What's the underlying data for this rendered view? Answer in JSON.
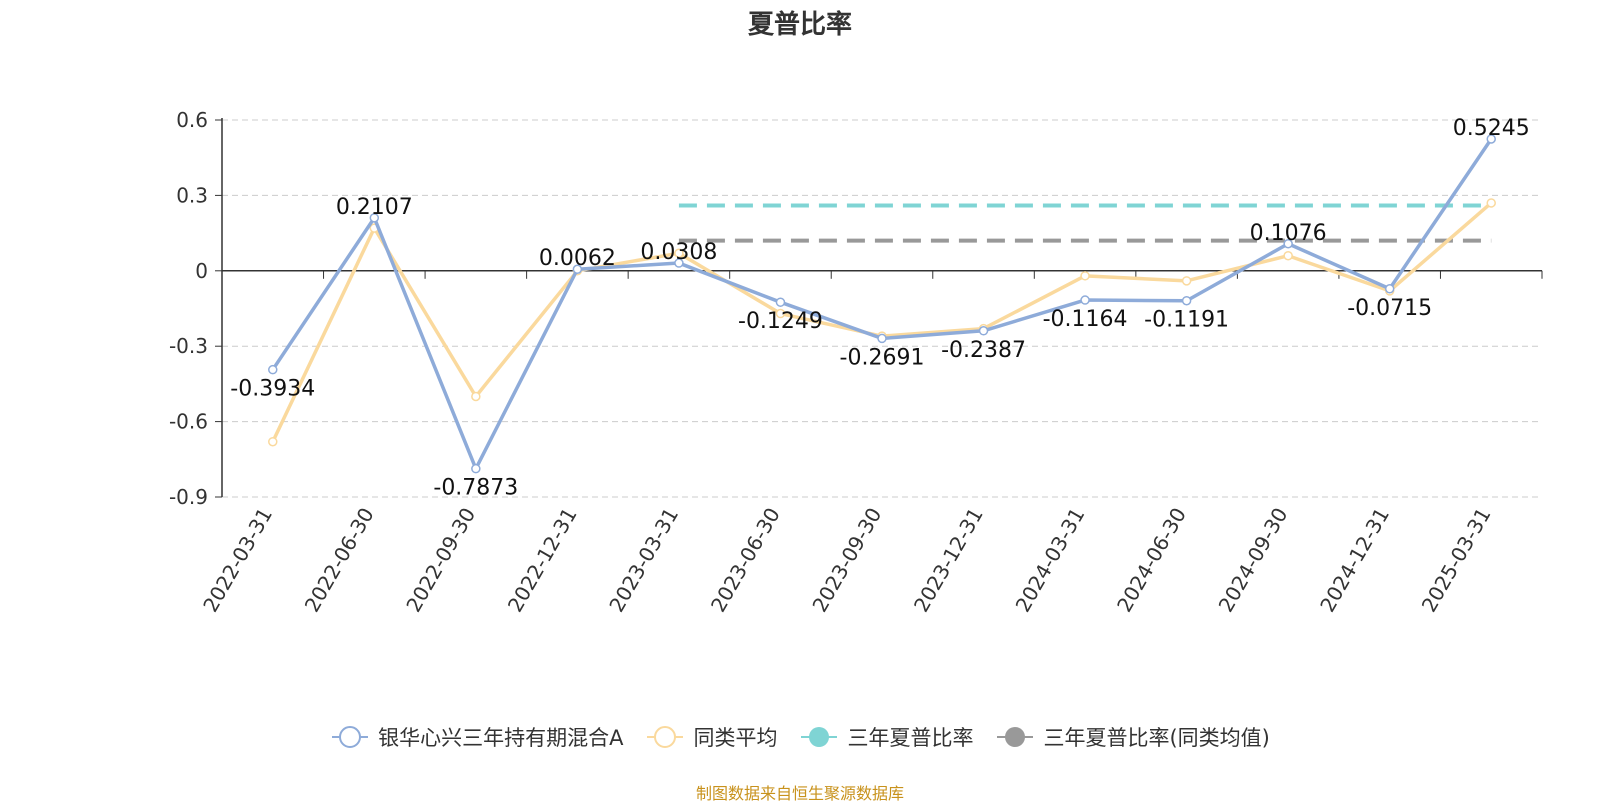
{
  "chart_data": {
    "type": "line",
    "title": "夏普比率",
    "categories": [
      "2022-03-31",
      "2022-06-30",
      "2022-09-30",
      "2022-12-31",
      "2023-03-31",
      "2023-06-30",
      "2023-09-30",
      "2023-12-31",
      "2024-03-31",
      "2024-06-30",
      "2024-09-30",
      "2024-12-31",
      "2025-03-31"
    ],
    "ylim": [
      -0.9,
      0.6
    ],
    "yticks": [
      "0.6",
      "0.3",
      "0",
      "-0.3",
      "-0.6",
      "-0.9"
    ],
    "grid": true,
    "legend_position": "bottom",
    "series": [
      {
        "name": "银华心兴三年持有期混合A",
        "color": "#8eabd9",
        "values": [
          -0.3934,
          0.2107,
          -0.7873,
          0.0062,
          0.0308,
          -0.1249,
          -0.2691,
          -0.2387,
          -0.1164,
          -0.1191,
          0.1076,
          -0.0715,
          0.5245
        ],
        "labels": [
          "-0.3934",
          "0.2107",
          "-0.7873",
          "0.0062",
          "0.0308",
          "-0.1249",
          "-0.2691",
          "-0.2387",
          "-0.1164",
          "-0.1191",
          "0.1076",
          "-0.0715",
          "0.5245"
        ]
      },
      {
        "name": "同类平均",
        "color": "#fad99d",
        "values": [
          -0.68,
          0.17,
          -0.5,
          0.0,
          0.07,
          -0.17,
          -0.26,
          -0.23,
          -0.02,
          -0.04,
          0.06,
          -0.08,
          0.27
        ]
      },
      {
        "name": "三年夏普比率",
        "color": "#7fd4d4",
        "type": "dashed-reference",
        "value": 0.26,
        "from": "2023-03-31",
        "to": "2025-03-31"
      },
      {
        "name": "三年夏普比率(同类均值)",
        "color": "#999999",
        "type": "dashed-reference",
        "value": 0.12,
        "from": "2023-03-31",
        "to": "2025-03-31"
      }
    ]
  },
  "source": "制图数据来自恒生聚源数据库"
}
